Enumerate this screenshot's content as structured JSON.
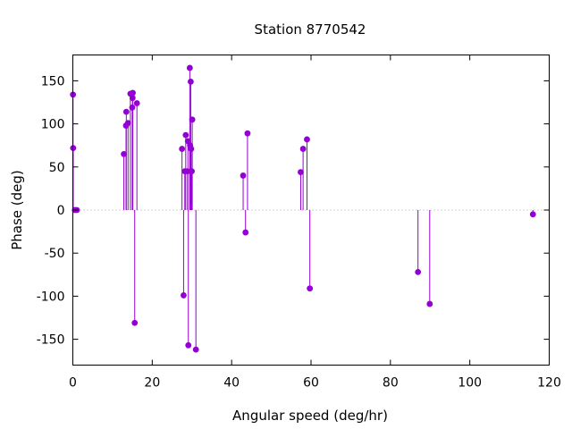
{
  "chart_data": {
    "type": "scatter",
    "style": "impulses-with-points",
    "title": "Station 8770542",
    "xlabel": "Angular speed (deg/hr)",
    "ylabel": "Phase (deg)",
    "xlim": [
      0,
      120
    ],
    "ylim": [
      -180,
      180
    ],
    "xticks": [
      0,
      20,
      40,
      60,
      80,
      100,
      120
    ],
    "yticks": [
      -150,
      -100,
      -50,
      0,
      50,
      100,
      150
    ],
    "grid": false,
    "zero_line": true,
    "color": "#9400d3",
    "points": [
      {
        "x": 0.04,
        "y": 134
      },
      {
        "x": 0.08,
        "y": 72
      },
      {
        "x": 0.5,
        "y": 0
      },
      {
        "x": 1.0,
        "y": 0
      },
      {
        "x": 12.85,
        "y": 65
      },
      {
        "x": 13.4,
        "y": 98
      },
      {
        "x": 13.47,
        "y": 114
      },
      {
        "x": 13.9,
        "y": 101
      },
      {
        "x": 14.5,
        "y": 135
      },
      {
        "x": 14.96,
        "y": 119
      },
      {
        "x": 15.04,
        "y": 130
      },
      {
        "x": 15.1,
        "y": 136
      },
      {
        "x": 15.59,
        "y": -131
      },
      {
        "x": 16.14,
        "y": 124
      },
      {
        "x": 27.5,
        "y": 71
      },
      {
        "x": 27.9,
        "y": -99
      },
      {
        "x": 28.2,
        "y": 45
      },
      {
        "x": 28.44,
        "y": 87
      },
      {
        "x": 28.9,
        "y": 45
      },
      {
        "x": 28.98,
        "y": 80
      },
      {
        "x": 29.1,
        "y": -157
      },
      {
        "x": 29.46,
        "y": 165
      },
      {
        "x": 29.53,
        "y": 75
      },
      {
        "x": 29.7,
        "y": 149
      },
      {
        "x": 29.8,
        "y": 71
      },
      {
        "x": 29.96,
        "y": 45
      },
      {
        "x": 30.08,
        "y": 105
      },
      {
        "x": 31.0,
        "y": -162
      },
      {
        "x": 42.9,
        "y": 40
      },
      {
        "x": 43.5,
        "y": -26
      },
      {
        "x": 44.0,
        "y": 89
      },
      {
        "x": 57.4,
        "y": 44
      },
      {
        "x": 58.0,
        "y": 71
      },
      {
        "x": 58.98,
        "y": 82
      },
      {
        "x": 59.7,
        "y": -91
      },
      {
        "x": 86.95,
        "y": -72
      },
      {
        "x": 89.9,
        "y": -109
      },
      {
        "x": 115.9,
        "y": -5
      }
    ]
  }
}
